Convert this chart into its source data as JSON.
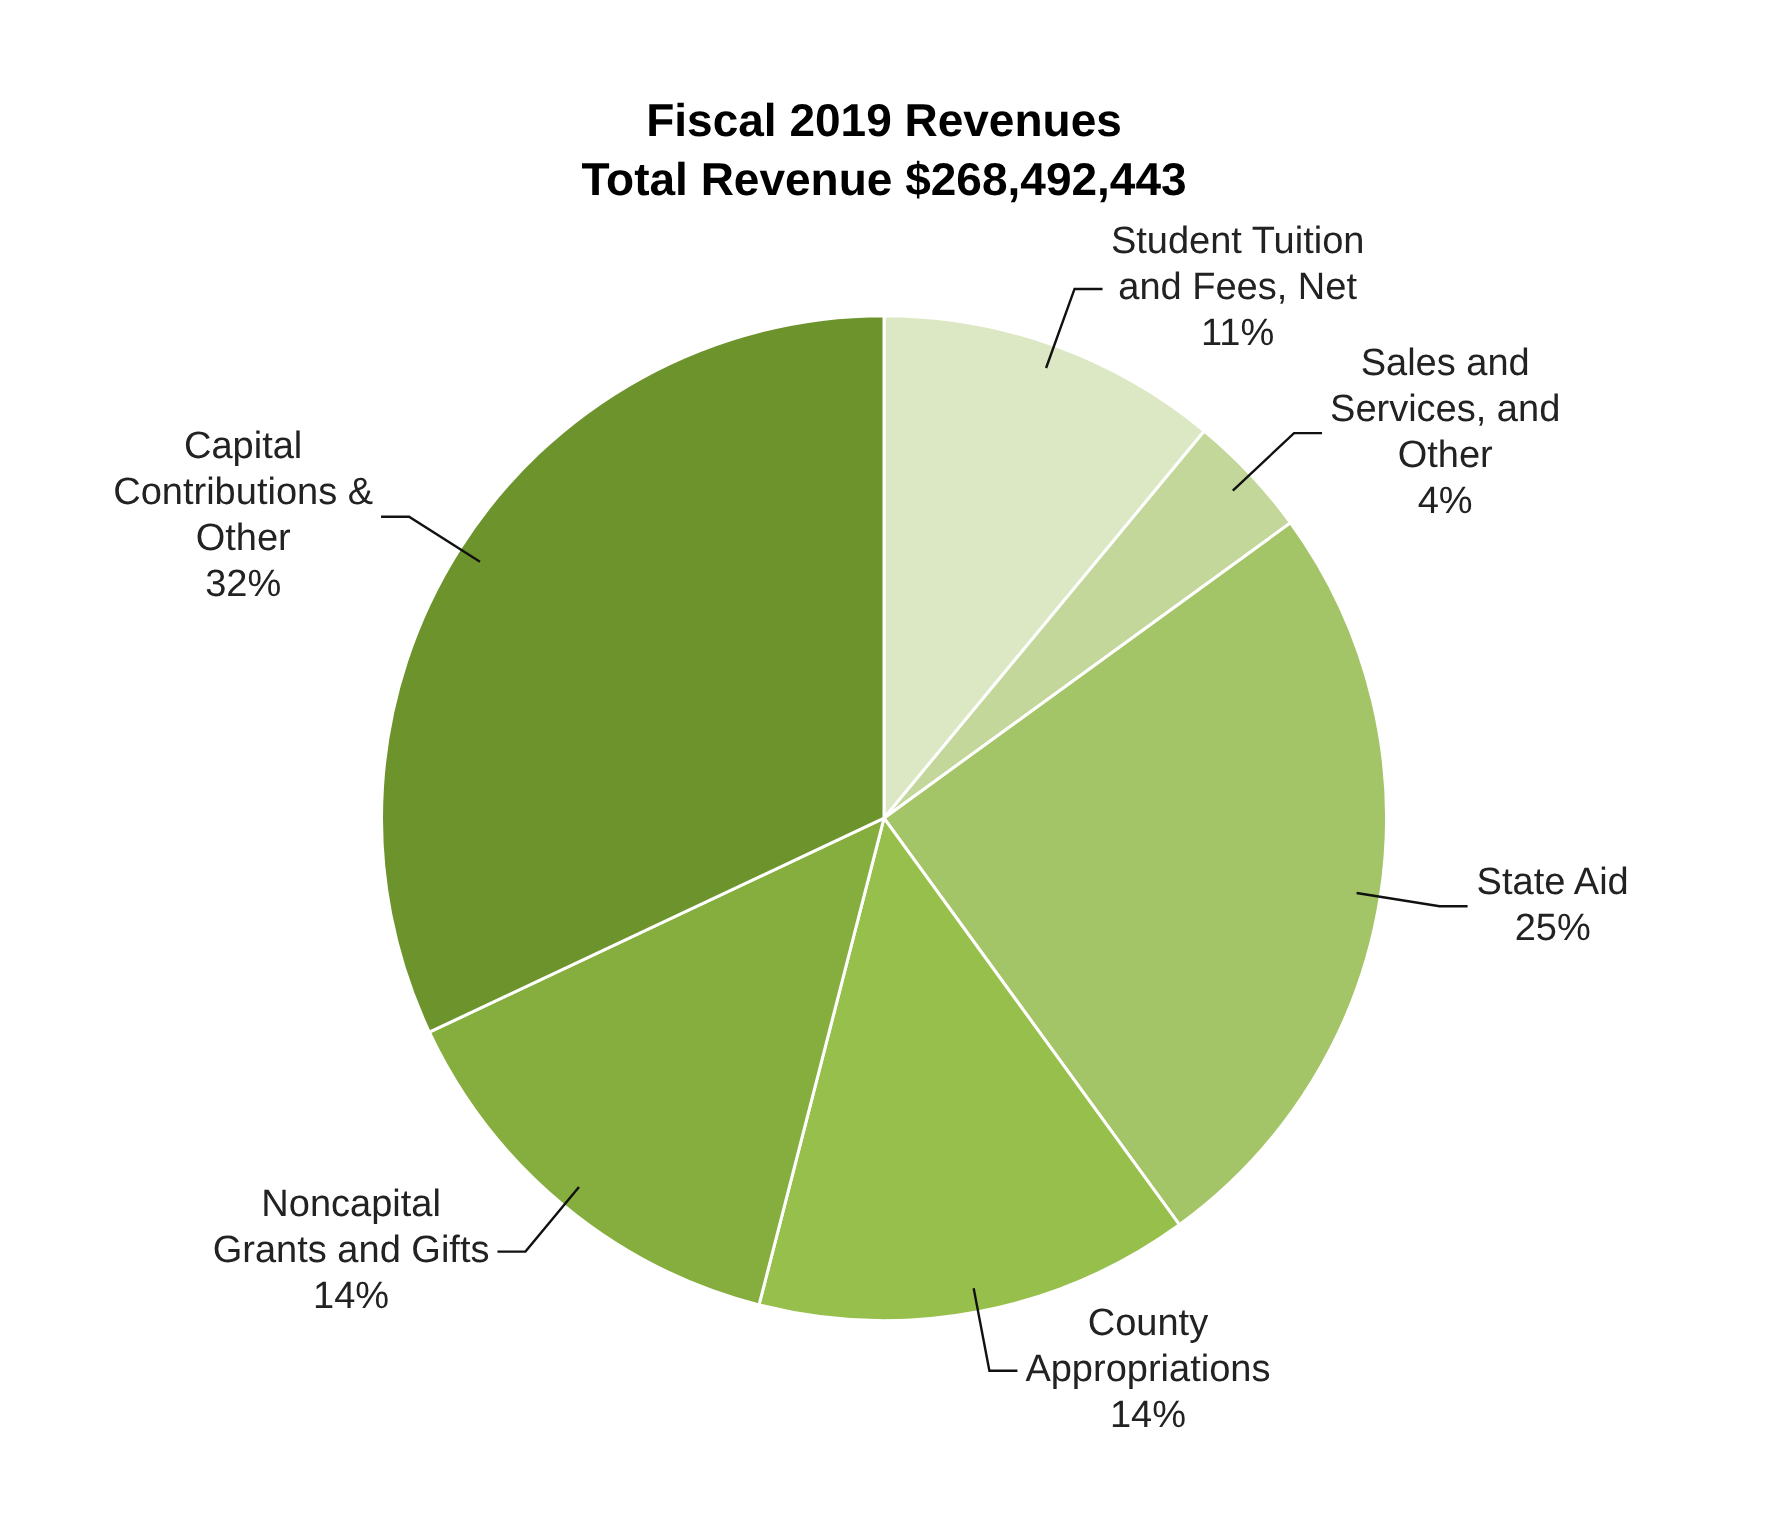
{
  "chart_data": {
    "type": "pie",
    "title": "Fiscal 2019 Revenues",
    "subtitle": "Total Revenue $268,492,443",
    "categories": [
      "Student Tuition\nand Fees, Net",
      "Sales and\nServices, and\nOther",
      "State Aid",
      "County\nAppropriations",
      "Noncapital\nGrants and Gifts",
      "Capital\nContributions &\nOther"
    ],
    "values": [
      11,
      4,
      25,
      14,
      14,
      32
    ],
    "value_labels": [
      "11%",
      "4%",
      "25%",
      "14%",
      "14%",
      "32%"
    ],
    "colors": [
      "#dce7c4",
      "#c3d79a",
      "#a4c468",
      "#97bf4c",
      "#86ae3e",
      "#6d942c"
    ],
    "legend": false
  }
}
